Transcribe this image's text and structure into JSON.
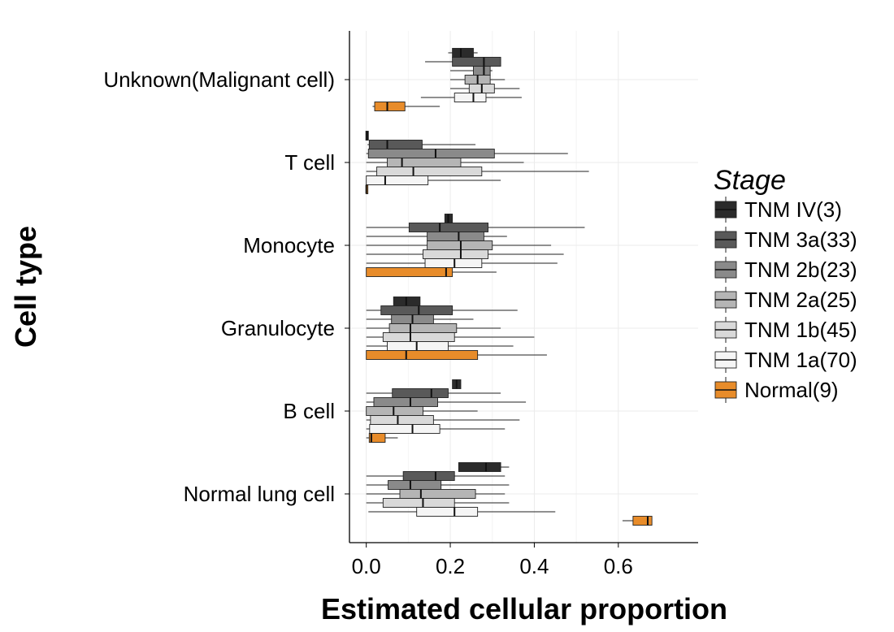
{
  "chart_data": {
    "type": "boxplot",
    "orientation": "horizontal",
    "xlabel": "Estimated cellular proportion",
    "ylabel": "Cell type",
    "xlim": [
      -0.04,
      0.79
    ],
    "xticks": [
      0.0,
      0.2,
      0.4,
      0.6
    ],
    "xtick_labels": [
      "0.0",
      "0.2",
      "0.4",
      "0.6"
    ],
    "grid": true,
    "legend_position": "right",
    "legend_title": "Stage",
    "series": [
      {
        "name": "TNM IV(3)",
        "color": "#2b2b2b"
      },
      {
        "name": "TNM 3a(33)",
        "color": "#595959"
      },
      {
        "name": "TNM 2b(23)",
        "color": "#8a8a8a"
      },
      {
        "name": "TNM 2a(25)",
        "color": "#b5b5b5"
      },
      {
        "name": "TNM 1b(45)",
        "color": "#d9d9d9"
      },
      {
        "name": "TNM 1a(70)",
        "color": "#f5f5f5"
      },
      {
        "name": "Normal(9)",
        "color": "#e88c2a"
      }
    ],
    "categories": [
      {
        "name": "Unknown(Malignant cell)",
        "boxes": [
          {
            "series": "TNM IV(3)",
            "min": 0.195,
            "q1": 0.205,
            "median": 0.225,
            "q3": 0.255,
            "max": 0.265
          },
          {
            "series": "TNM 3a(33)",
            "min": 0.14,
            "q1": 0.205,
            "median": 0.28,
            "q3": 0.32,
            "max": 0.32
          },
          {
            "series": "TNM 2b(23)",
            "min": 0.2,
            "q1": 0.255,
            "median": 0.28,
            "q3": 0.295,
            "max": 0.3
          },
          {
            "series": "TNM 2a(25)",
            "min": 0.2,
            "q1": 0.235,
            "median": 0.265,
            "q3": 0.295,
            "max": 0.33
          },
          {
            "series": "TNM 1b(45)",
            "min": 0.2,
            "q1": 0.245,
            "median": 0.275,
            "q3": 0.305,
            "max": 0.365
          },
          {
            "series": "TNM 1a(70)",
            "min": 0.13,
            "q1": 0.21,
            "median": 0.255,
            "q3": 0.285,
            "max": 0.37
          },
          {
            "series": "Normal(9)",
            "min": 0.015,
            "q1": 0.02,
            "median": 0.05,
            "q3": 0.092,
            "max": 0.175
          }
        ]
      },
      {
        "name": "T cell",
        "boxes": [
          {
            "series": "TNM IV(3)",
            "min": -0.001,
            "q1": -0.001,
            "median": 0.002,
            "q3": 0.005,
            "max": 0.005
          },
          {
            "series": "TNM 3a(33)",
            "min": 0.003,
            "q1": 0.007,
            "median": 0.05,
            "q3": 0.133,
            "max": 0.26
          },
          {
            "series": "TNM 2b(23)",
            "min": 0.0,
            "q1": 0.005,
            "median": 0.165,
            "q3": 0.305,
            "max": 0.48
          },
          {
            "series": "TNM 2a(25)",
            "min": 0.0,
            "q1": 0.05,
            "median": 0.085,
            "q3": 0.225,
            "max": 0.375
          },
          {
            "series": "TNM 1b(45)",
            "min": 0.0,
            "q1": 0.025,
            "median": 0.112,
            "q3": 0.275,
            "max": 0.53
          },
          {
            "series": "TNM 1a(70)",
            "min": 0.0,
            "q1": 0.0,
            "median": 0.045,
            "q3": 0.147,
            "max": 0.32
          },
          {
            "series": "Normal(9)",
            "min": 0.0,
            "q1": 0.0,
            "median": 0.0,
            "q3": 0.001,
            "max": 0.001
          }
        ]
      },
      {
        "name": "Monocyte",
        "boxes": [
          {
            "series": "TNM IV(3)",
            "min": 0.187,
            "q1": 0.187,
            "median": 0.195,
            "q3": 0.205,
            "max": 0.205
          },
          {
            "series": "TNM 3a(33)",
            "min": 0.0,
            "q1": 0.102,
            "median": 0.175,
            "q3": 0.29,
            "max": 0.52
          },
          {
            "series": "TNM 2b(23)",
            "min": 0.0,
            "q1": 0.145,
            "median": 0.22,
            "q3": 0.28,
            "max": 0.335
          },
          {
            "series": "TNM 2a(25)",
            "min": 0.0,
            "q1": 0.145,
            "median": 0.225,
            "q3": 0.3,
            "max": 0.44
          },
          {
            "series": "TNM 1b(45)",
            "min": 0.0,
            "q1": 0.135,
            "median": 0.225,
            "q3": 0.29,
            "max": 0.47
          },
          {
            "series": "TNM 1a(70)",
            "min": 0.0,
            "q1": 0.14,
            "median": 0.21,
            "q3": 0.275,
            "max": 0.455
          },
          {
            "series": "Normal(9)",
            "min": 0.0,
            "q1": 0.0,
            "median": 0.19,
            "q3": 0.205,
            "max": 0.31
          }
        ]
      },
      {
        "name": "Granulocyte",
        "boxes": [
          {
            "series": "TNM IV(3)",
            "min": 0.065,
            "q1": 0.065,
            "median": 0.095,
            "q3": 0.128,
            "max": 0.128
          },
          {
            "series": "TNM 3a(33)",
            "min": 0.0,
            "q1": 0.035,
            "median": 0.125,
            "q3": 0.205,
            "max": 0.36
          },
          {
            "series": "TNM 2b(23)",
            "min": 0.0,
            "q1": 0.06,
            "median": 0.11,
            "q3": 0.16,
            "max": 0.255
          },
          {
            "series": "TNM 2a(25)",
            "min": 0.0,
            "q1": 0.055,
            "median": 0.105,
            "q3": 0.215,
            "max": 0.32
          },
          {
            "series": "TNM 1b(45)",
            "min": 0.0,
            "q1": 0.04,
            "median": 0.105,
            "q3": 0.21,
            "max": 0.4
          },
          {
            "series": "TNM 1a(70)",
            "min": 0.0,
            "q1": 0.05,
            "median": 0.12,
            "q3": 0.195,
            "max": 0.35
          },
          {
            "series": "Normal(9)",
            "min": 0.0,
            "q1": 0.0,
            "median": 0.095,
            "q3": 0.265,
            "max": 0.43
          }
        ]
      },
      {
        "name": "B cell",
        "boxes": [
          {
            "series": "TNM IV(3)",
            "min": 0.205,
            "q1": 0.205,
            "median": 0.215,
            "q3": 0.225,
            "max": 0.225
          },
          {
            "series": "TNM 3a(33)",
            "min": 0.0,
            "q1": 0.062,
            "median": 0.155,
            "q3": 0.195,
            "max": 0.32
          },
          {
            "series": "TNM 2b(23)",
            "min": 0.0,
            "q1": 0.018,
            "median": 0.105,
            "q3": 0.17,
            "max": 0.38
          },
          {
            "series": "TNM 2a(25)",
            "min": 0.0,
            "q1": 0.0,
            "median": 0.065,
            "q3": 0.135,
            "max": 0.265
          },
          {
            "series": "TNM 1b(45)",
            "min": 0.0,
            "q1": 0.01,
            "median": 0.075,
            "q3": 0.16,
            "max": 0.365
          },
          {
            "series": "TNM 1a(70)",
            "min": 0.0,
            "q1": 0.008,
            "median": 0.11,
            "q3": 0.175,
            "max": 0.33
          },
          {
            "series": "Normal(9)",
            "min": 0.0,
            "q1": 0.007,
            "median": 0.012,
            "q3": 0.045,
            "max": 0.075
          }
        ]
      },
      {
        "name": "Normal lung cell",
        "boxes": [
          {
            "series": "TNM IV(3)",
            "min": 0.22,
            "q1": 0.22,
            "median": 0.285,
            "q3": 0.32,
            "max": 0.34
          },
          {
            "series": "TNM 3a(33)",
            "min": 0.0,
            "q1": 0.088,
            "median": 0.165,
            "q3": 0.21,
            "max": 0.33
          },
          {
            "series": "TNM 2b(23)",
            "min": 0.0,
            "q1": 0.052,
            "median": 0.105,
            "q3": 0.178,
            "max": 0.34
          },
          {
            "series": "TNM 2a(25)",
            "min": 0.0,
            "q1": 0.08,
            "median": 0.13,
            "q3": 0.26,
            "max": 0.33
          },
          {
            "series": "TNM 1b(45)",
            "min": 0.0,
            "q1": 0.04,
            "median": 0.135,
            "q3": 0.21,
            "max": 0.34
          },
          {
            "series": "TNM 1a(70)",
            "min": 0.005,
            "q1": 0.12,
            "median": 0.21,
            "q3": 0.265,
            "max": 0.45
          },
          {
            "series": "Normal(9)",
            "min": 0.61,
            "q1": 0.635,
            "median": 0.67,
            "q3": 0.68,
            "max": 0.68
          }
        ]
      }
    ]
  }
}
